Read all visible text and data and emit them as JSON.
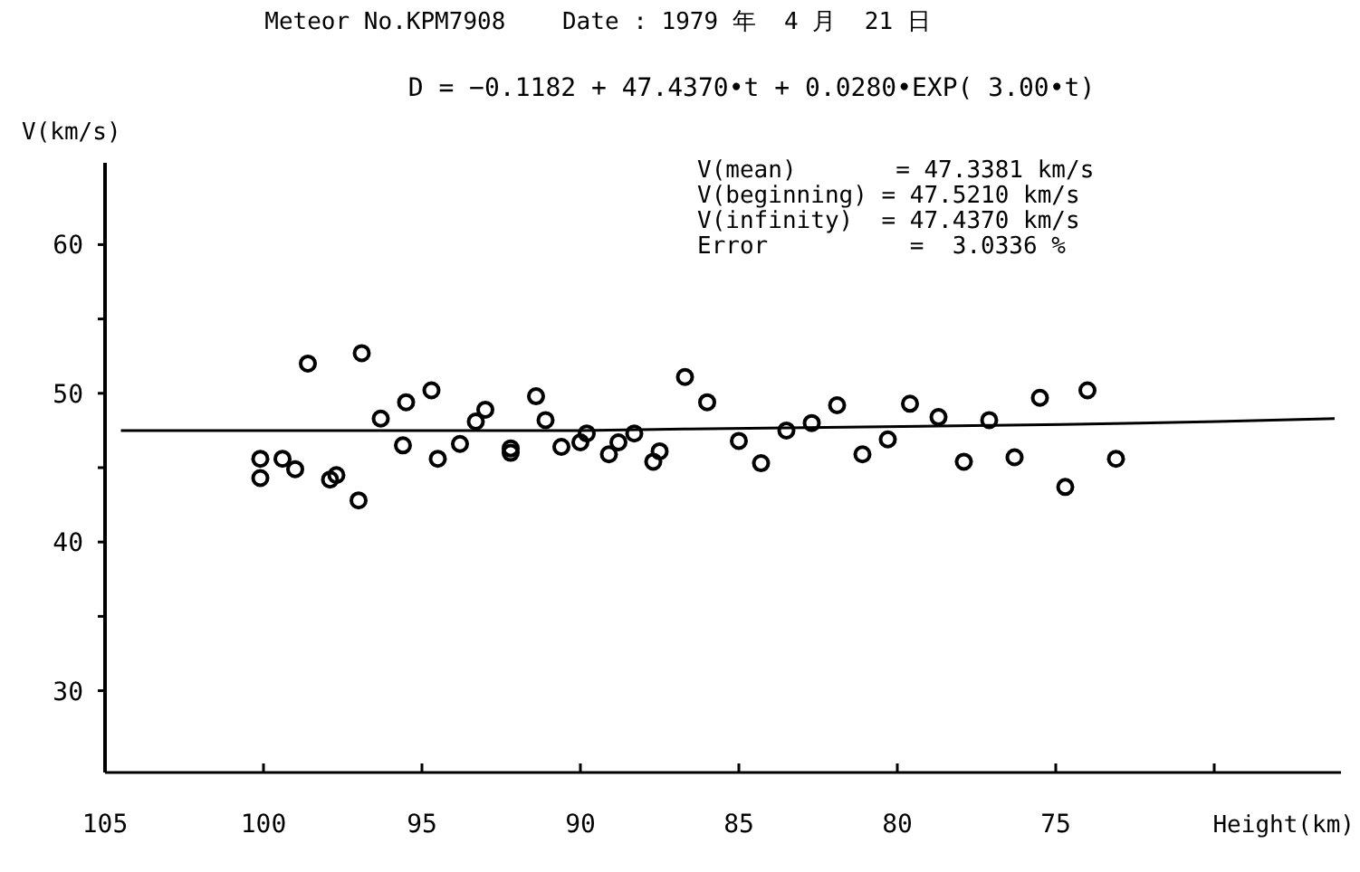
{
  "chart_data": {
    "type": "scatter",
    "title": "Meteor No.KPM7908    Date : 1979 年  4 月  21 日",
    "subtitle": "D = −0.1182 + 47.4370•t + 0.0280•EXP( 3.00•t)",
    "xlabel": "Height(km)",
    "ylabel": "V(km/s)",
    "annotations": [
      "V(mean)       = 47.3381 km/s",
      "V(beginning) = 47.5210 km/s",
      "V(infinity)  = 47.4370 km/s",
      "Error          =  3.0336 %"
    ],
    "xlim": [
      105,
      66
    ],
    "ylim": [
      24.5,
      65.5
    ],
    "xticks": [
      105,
      100,
      95,
      90,
      85,
      80,
      75,
      {
        "value": 70,
        "label": null
      }
    ],
    "yticks": [
      30,
      {
        "value": 35,
        "label": null
      },
      40,
      {
        "value": 45,
        "label": null
      },
      50,
      {
        "value": 55,
        "label": null
      },
      60
    ],
    "grid": false,
    "series": [
      {
        "color": "#000000",
        "marker": "circle",
        "x": [
          100.1,
          100.1,
          99.4,
          99.0,
          98.6,
          97.9,
          97.7,
          97.0,
          96.9,
          96.3,
          95.6,
          95.5,
          94.7,
          94.5,
          93.8,
          93.3,
          93.0,
          92.2,
          92.2,
          91.4,
          91.1,
          90.6,
          90.0,
          89.8,
          89.1,
          88.8,
          88.3,
          87.7,
          87.5,
          86.7,
          86.0,
          85.0,
          84.3,
          83.5,
          82.7,
          81.9,
          81.1,
          80.3,
          79.6,
          78.7,
          77.9,
          77.1,
          76.3,
          75.5,
          74.7,
          74.0,
          73.1
        ],
        "values": [
          45.6,
          44.3,
          45.6,
          44.9,
          52.0,
          44.2,
          44.5,
          42.8,
          52.7,
          48.3,
          46.5,
          49.4,
          50.2,
          45.6,
          46.6,
          48.1,
          48.9,
          46.3,
          46.0,
          49.8,
          48.2,
          46.4,
          46.7,
          47.3,
          45.9,
          46.7,
          47.3,
          45.4,
          46.1,
          51.1,
          49.4,
          46.8,
          45.3,
          47.5,
          48.0,
          49.2,
          45.9,
          46.9,
          49.3,
          48.4,
          45.4,
          48.2,
          45.7,
          49.7,
          43.7,
          50.2,
          45.6
        ]
      },
      {
        "type": "line",
        "color": "#000000",
        "marker": "none",
        "x": [
          104.5,
          90,
          86.7,
          74.8,
          69.9,
          66.2
        ],
        "values": [
          47.5,
          47.5,
          47.6,
          47.9,
          48.1,
          48.3
        ]
      }
    ]
  }
}
